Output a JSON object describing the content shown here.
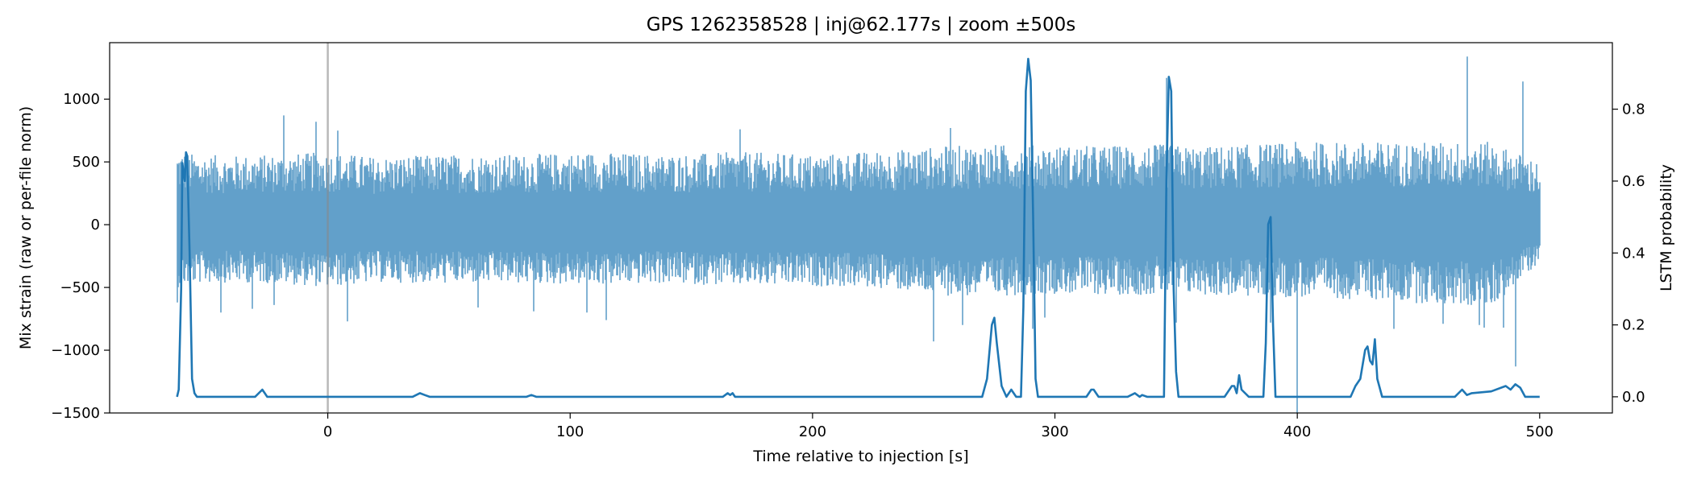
{
  "chart_data": {
    "type": "line",
    "title": "GPS 1262358528 | inj@62.177s | zoom ±500s",
    "xlabel": "Time relative to injection [s]",
    "ylabel_left": "Mix strain (raw or per-file norm)",
    "ylabel_right": "LSTM probability",
    "xlim": [
      -90,
      530
    ],
    "ylim_left": [
      -1500,
      1450
    ],
    "ylim_right": [
      -0.045,
      0.985
    ],
    "x_ticks": [
      0,
      100,
      200,
      300,
      400,
      500
    ],
    "y_ticks_left": [
      -1500,
      -1000,
      -500,
      0,
      500,
      1000
    ],
    "y_ticks_right": [
      0.0,
      0.2,
      0.4,
      0.6,
      0.8
    ],
    "x_tick_labels": [
      "0",
      "100",
      "200",
      "300",
      "400",
      "500"
    ],
    "y_tick_labels_left": [
      "−1500",
      "−1000",
      "−500",
      "0",
      "500",
      "1000"
    ],
    "y_tick_labels_right": [
      "0.0",
      "0.2",
      "0.4",
      "0.6",
      "0.8"
    ],
    "reference_line_x": 0,
    "grid": false,
    "colors": {
      "strain": "#1f77b4",
      "probability": "#1f77b4",
      "reference_line": "#aaaaaa"
    },
    "series": [
      {
        "axis": "left",
        "x_range": [
          -62.2,
          500
        ],
        "envelope_upper": [
          [
            -62,
            600
          ],
          [
            -55,
            560
          ],
          [
            -40,
            550
          ],
          [
            -20,
            560
          ],
          [
            0,
            580
          ],
          [
            20,
            540
          ],
          [
            50,
            560
          ],
          [
            80,
            560
          ],
          [
            110,
            580
          ],
          [
            140,
            560
          ],
          [
            170,
            580
          ],
          [
            200,
            560
          ],
          [
            230,
            590
          ],
          [
            250,
            620
          ],
          [
            270,
            640
          ],
          [
            285,
            640
          ],
          [
            300,
            630
          ],
          [
            320,
            630
          ],
          [
            345,
            640
          ],
          [
            360,
            620
          ],
          [
            380,
            640
          ],
          [
            400,
            660
          ],
          [
            430,
            660
          ],
          [
            460,
            660
          ],
          [
            480,
            660
          ],
          [
            500,
            500
          ]
        ],
        "envelope_lower": [
          [
            -62,
            -500
          ],
          [
            -55,
            -470
          ],
          [
            -40,
            -460
          ],
          [
            -20,
            -470
          ],
          [
            0,
            -500
          ],
          [
            20,
            -460
          ],
          [
            50,
            -470
          ],
          [
            80,
            -470
          ],
          [
            110,
            -480
          ],
          [
            140,
            -470
          ],
          [
            170,
            -490
          ],
          [
            200,
            -490
          ],
          [
            230,
            -510
          ],
          [
            250,
            -560
          ],
          [
            270,
            -580
          ],
          [
            285,
            -560
          ],
          [
            300,
            -550
          ],
          [
            320,
            -560
          ],
          [
            345,
            -560
          ],
          [
            360,
            -560
          ],
          [
            380,
            -580
          ],
          [
            400,
            -580
          ],
          [
            430,
            -600
          ],
          [
            460,
            -640
          ],
          [
            480,
            -660
          ],
          [
            500,
            -300
          ]
        ],
        "spikes": [
          [
            -62,
            -620
          ],
          [
            -44,
            -700
          ],
          [
            -31,
            -670
          ],
          [
            -22,
            -640
          ],
          [
            -18,
            870
          ],
          [
            -5,
            820
          ],
          [
            4,
            750
          ],
          [
            8,
            -770
          ],
          [
            62,
            -660
          ],
          [
            85,
            -690
          ],
          [
            107,
            -700
          ],
          [
            115,
            -760
          ],
          [
            170,
            -780
          ],
          [
            170,
            760
          ],
          [
            250,
            -930
          ],
          [
            257,
            770
          ],
          [
            262,
            -800
          ],
          [
            291,
            -830
          ],
          [
            296,
            -740
          ],
          [
            346,
            1170
          ],
          [
            350,
            -780
          ],
          [
            389,
            -780
          ],
          [
            400,
            1220
          ],
          [
            400,
            -1500
          ],
          [
            440,
            -830
          ],
          [
            460,
            -790
          ],
          [
            470,
            1340
          ],
          [
            475,
            -800
          ],
          [
            477,
            -820
          ],
          [
            485,
            -820
          ],
          [
            490,
            -1130
          ],
          [
            493,
            1140
          ]
        ]
      },
      {
        "axis": "right",
        "points": [
          [
            -62.2,
            0.0
          ],
          [
            -61.5,
            0.02
          ],
          [
            -60.5,
            0.3
          ],
          [
            -60,
            0.65
          ],
          [
            -59,
            0.6
          ],
          [
            -58.5,
            0.68
          ],
          [
            -58,
            0.67
          ],
          [
            -57,
            0.4
          ],
          [
            -56,
            0.05
          ],
          [
            -55,
            0.01
          ],
          [
            -54,
            0.0
          ],
          [
            -30,
            0.0
          ],
          [
            -27,
            0.02
          ],
          [
            -26,
            0.01
          ],
          [
            -25,
            0.0
          ],
          [
            35,
            0.0
          ],
          [
            38,
            0.01
          ],
          [
            40,
            0.005
          ],
          [
            42,
            0.0
          ],
          [
            82,
            0.0
          ],
          [
            84,
            0.005
          ],
          [
            86,
            0.0
          ],
          [
            163,
            0.0
          ],
          [
            165,
            0.01
          ],
          [
            166,
            0.005
          ],
          [
            167,
            0.01
          ],
          [
            168,
            0.0
          ],
          [
            270,
            0.0
          ],
          [
            272,
            0.05
          ],
          [
            274,
            0.2
          ],
          [
            275,
            0.22
          ],
          [
            276,
            0.15
          ],
          [
            278,
            0.03
          ],
          [
            280,
            0.0
          ],
          [
            282,
            0.02
          ],
          [
            284,
            0.0
          ],
          [
            286,
            0.0
          ],
          [
            287,
            0.25
          ],
          [
            288,
            0.85
          ],
          [
            289,
            0.94
          ],
          [
            290,
            0.88
          ],
          [
            291,
            0.5
          ],
          [
            292,
            0.05
          ],
          [
            293,
            0.0
          ],
          [
            313,
            0.0
          ],
          [
            315,
            0.02
          ],
          [
            316,
            0.02
          ],
          [
            318,
            0.0
          ],
          [
            330,
            0.0
          ],
          [
            333,
            0.01
          ],
          [
            335,
            0.0
          ],
          [
            336,
            0.005
          ],
          [
            338,
            0.0
          ],
          [
            345,
            0.0
          ],
          [
            346,
            0.6
          ],
          [
            347,
            0.89
          ],
          [
            348,
            0.85
          ],
          [
            349,
            0.3
          ],
          [
            350,
            0.07
          ],
          [
            351,
            0.0
          ],
          [
            370,
            0.0
          ],
          [
            373,
            0.03
          ],
          [
            374,
            0.03
          ],
          [
            375,
            0.01
          ],
          [
            376,
            0.06
          ],
          [
            377,
            0.02
          ],
          [
            380,
            0.0
          ],
          [
            386,
            0.0
          ],
          [
            387,
            0.15
          ],
          [
            388,
            0.48
          ],
          [
            389,
            0.5
          ],
          [
            390,
            0.2
          ],
          [
            391,
            0.0
          ],
          [
            422,
            0.0
          ],
          [
            424,
            0.03
          ],
          [
            426,
            0.05
          ],
          [
            428,
            0.13
          ],
          [
            429,
            0.14
          ],
          [
            430,
            0.1
          ],
          [
            431,
            0.09
          ],
          [
            432,
            0.16
          ],
          [
            433,
            0.05
          ],
          [
            435,
            0.0
          ],
          [
            465,
            0.0
          ],
          [
            468,
            0.02
          ],
          [
            470,
            0.005
          ],
          [
            472,
            0.01
          ],
          [
            480,
            0.015
          ],
          [
            486,
            0.03
          ],
          [
            488,
            0.02
          ],
          [
            490,
            0.035
          ],
          [
            492,
            0.025
          ],
          [
            494,
            0.0
          ],
          [
            500,
            0.0
          ]
        ]
      }
    ]
  }
}
